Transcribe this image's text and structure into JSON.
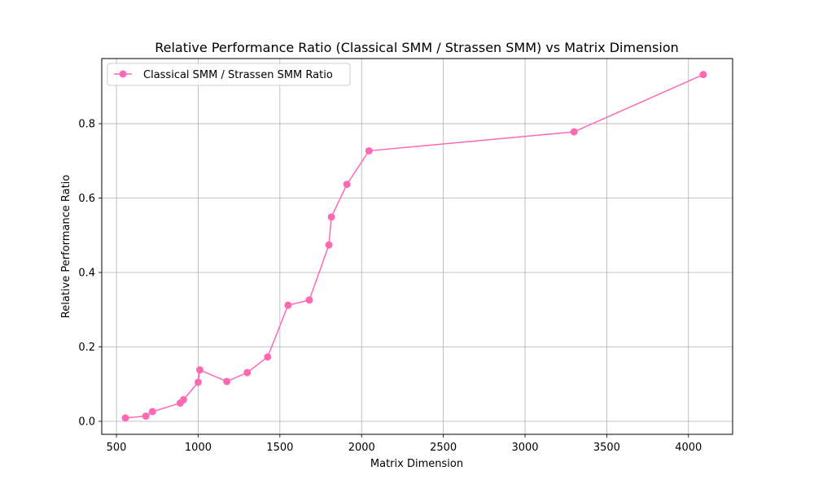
{
  "colors": {
    "series": "#ff69b4",
    "grid": "#b0b0b0",
    "axis": "#000000",
    "background": "#ffffff"
  },
  "chart_data": {
    "type": "line",
    "title": "Relative Performance Ratio (Classical SMM / Strassen SMM) vs Matrix Dimension",
    "xlabel": "Matrix Dimension",
    "ylabel": "Relative Performance Ratio",
    "xlim": [
      410,
      4270
    ],
    "ylim": [
      -0.035,
      0.975
    ],
    "x_ticks": [
      500,
      1000,
      1500,
      2000,
      2500,
      3000,
      3500,
      4000
    ],
    "x_tick_labels": [
      "500",
      "1000",
      "1500",
      "2000",
      "2500",
      "3000",
      "3500",
      "4000"
    ],
    "y_ticks": [
      0.0,
      0.2,
      0.4,
      0.6,
      0.8
    ],
    "y_tick_labels": [
      "0.0",
      "0.2",
      "0.4",
      "0.6",
      "0.8"
    ],
    "grid": true,
    "legend_position": "top-left",
    "marker": "circle",
    "series": [
      {
        "name": "Classical SMM / Strassen SMM Ratio",
        "x": [
          555,
          680,
          720,
          890,
          910,
          1000,
          1010,
          1175,
          1300,
          1425,
          1550,
          1680,
          1800,
          1815,
          1910,
          2045,
          3300,
          4090
        ],
        "y": [
          0.009,
          0.014,
          0.026,
          0.049,
          0.058,
          0.105,
          0.138,
          0.107,
          0.131,
          0.173,
          0.312,
          0.326,
          0.474,
          0.549,
          0.637,
          0.727,
          0.778,
          0.932
        ]
      }
    ]
  }
}
